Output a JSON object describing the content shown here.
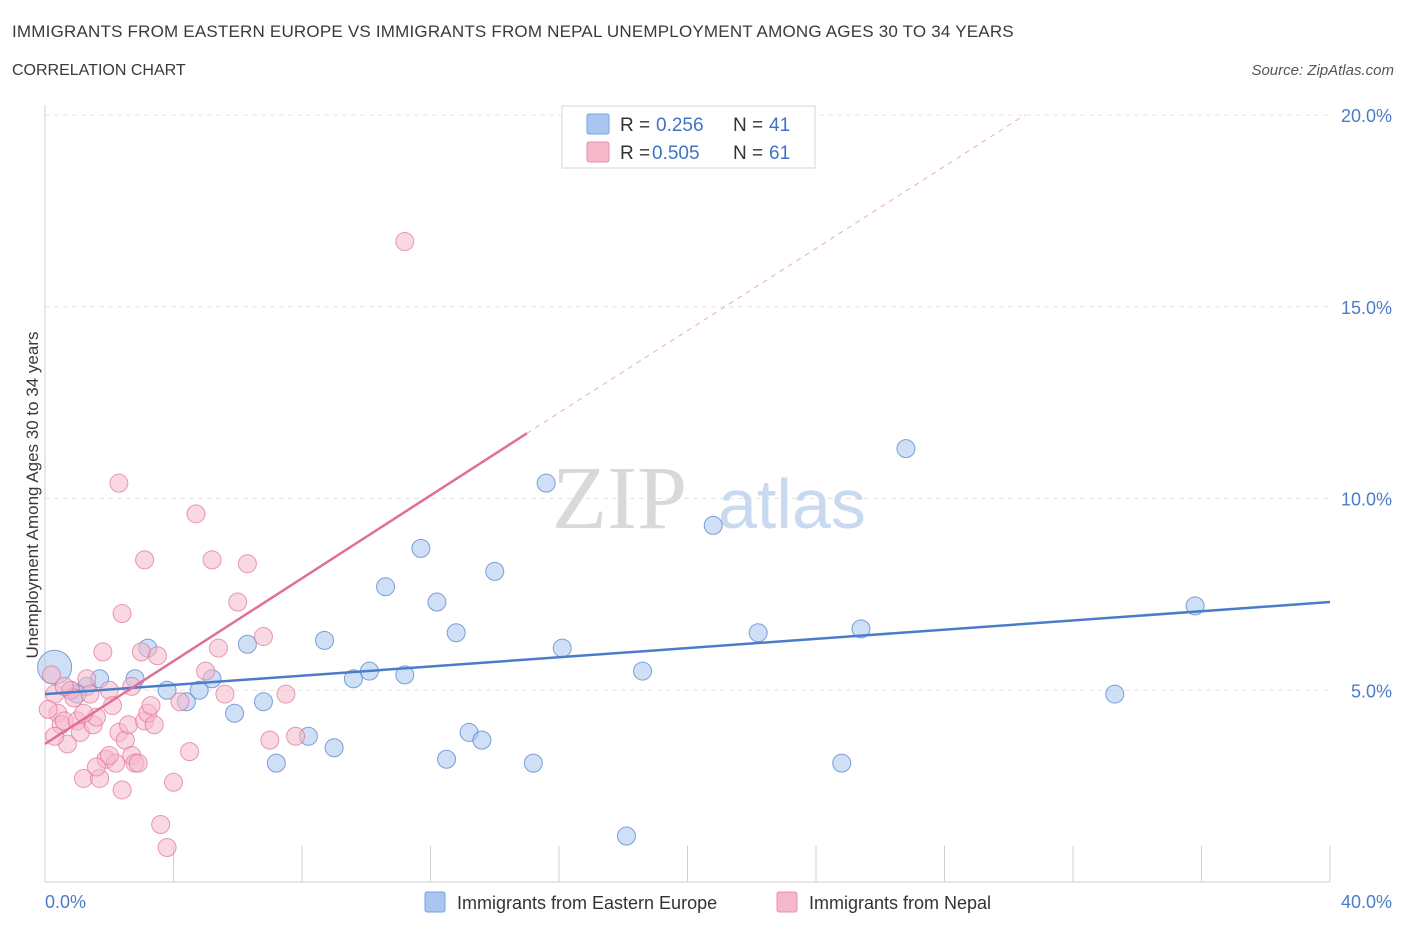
{
  "header": {
    "title": "IMMIGRANTS FROM EASTERN EUROPE VS IMMIGRANTS FROM NEPAL UNEMPLOYMENT AMONG AGES 30 TO 34 YEARS",
    "subtitle": "CORRELATION CHART",
    "source": "Source: ZipAtlas.com"
  },
  "watermark": {
    "zip": "ZIP",
    "atlas": "atlas"
  },
  "legend": {
    "rows": [
      {
        "r_label": "R =",
        "r_value": "0.256",
        "n_label": "N =",
        "n_value": "41",
        "color": "#a8c6ef"
      },
      {
        "r_label": "R =",
        "r_value": "0.505",
        "n_label": "N =",
        "n_value": "61",
        "color": "#f5b8cb"
      }
    ]
  },
  "chart_data": {
    "type": "scatter",
    "xlabel": "",
    "ylabel": "Unemployment Among Ages 30 to 34 years",
    "xlim": [
      0,
      40
    ],
    "ylim": [
      0,
      20
    ],
    "x_tick_labels": [
      "0.0%",
      "40.0%"
    ],
    "y_ticks": [
      5,
      10,
      15,
      20
    ],
    "y_tick_labels": [
      "5.0%",
      "10.0%",
      "15.0%",
      "20.0%"
    ],
    "grid": true,
    "legend_position": "top-center",
    "series": [
      {
        "name": "Immigrants from Eastern Europe",
        "color": "#4a7cc9",
        "fill": "#a8c6ef",
        "trend": {
          "x": [
            0,
            40
          ],
          "y": [
            4.9,
            7.3
          ]
        },
        "points": [
          [
            0.3,
            5.6
          ],
          [
            0.8,
            5.0
          ],
          [
            1.3,
            5.1
          ],
          [
            1.7,
            5.3
          ],
          [
            2.8,
            5.3
          ],
          [
            3.2,
            6.1
          ],
          [
            3.8,
            5.0
          ],
          [
            4.4,
            4.7
          ],
          [
            4.8,
            5.0
          ],
          [
            5.2,
            5.3
          ],
          [
            5.9,
            4.4
          ],
          [
            6.3,
            6.2
          ],
          [
            6.8,
            4.7
          ],
          [
            7.2,
            3.1
          ],
          [
            8.2,
            3.8
          ],
          [
            8.7,
            6.3
          ],
          [
            9.0,
            3.5
          ],
          [
            9.6,
            5.3
          ],
          [
            10.1,
            5.5
          ],
          [
            10.6,
            7.7
          ],
          [
            11.2,
            5.4
          ],
          [
            11.7,
            8.7
          ],
          [
            12.2,
            7.3
          ],
          [
            12.5,
            3.2
          ],
          [
            12.8,
            6.5
          ],
          [
            13.2,
            3.9
          ],
          [
            13.6,
            3.7
          ],
          [
            14.0,
            8.1
          ],
          [
            15.2,
            3.1
          ],
          [
            15.6,
            10.4
          ],
          [
            16.1,
            6.1
          ],
          [
            18.1,
            1.2
          ],
          [
            18.6,
            5.5
          ],
          [
            20.8,
            9.3
          ],
          [
            22.2,
            6.5
          ],
          [
            24.8,
            3.1
          ],
          [
            25.4,
            6.6
          ],
          [
            26.8,
            11.3
          ],
          [
            33.3,
            4.9
          ],
          [
            35.8,
            7.2
          ],
          [
            1.0,
            4.9
          ]
        ]
      },
      {
        "name": "Immigrants from Nepal",
        "color": "#e06f98",
        "fill": "#f5b8cb",
        "trend": {
          "x": [
            0,
            15
          ],
          "y": [
            3.6,
            11.7
          ]
        },
        "trend_dashed": {
          "x": [
            15,
            30.5
          ],
          "y": [
            11.7,
            20.0
          ]
        },
        "points": [
          [
            0.2,
            5.4
          ],
          [
            0.3,
            4.9
          ],
          [
            0.4,
            4.4
          ],
          [
            0.5,
            4.1
          ],
          [
            0.6,
            4.2
          ],
          [
            0.7,
            3.6
          ],
          [
            0.8,
            5.0
          ],
          [
            0.9,
            4.8
          ],
          [
            1.0,
            4.2
          ],
          [
            1.1,
            3.9
          ],
          [
            1.2,
            2.7
          ],
          [
            1.3,
            5.3
          ],
          [
            1.4,
            4.9
          ],
          [
            1.5,
            4.1
          ],
          [
            1.6,
            4.3
          ],
          [
            1.7,
            2.7
          ],
          [
            1.8,
            6.0
          ],
          [
            1.9,
            3.2
          ],
          [
            2.0,
            5.0
          ],
          [
            2.1,
            4.6
          ],
          [
            2.2,
            3.1
          ],
          [
            2.3,
            3.9
          ],
          [
            2.4,
            2.4
          ],
          [
            2.5,
            3.7
          ],
          [
            2.6,
            4.1
          ],
          [
            2.7,
            3.3
          ],
          [
            2.8,
            3.1
          ],
          [
            2.9,
            3.1
          ],
          [
            3.0,
            6.0
          ],
          [
            3.1,
            4.2
          ],
          [
            3.2,
            4.4
          ],
          [
            3.4,
            4.1
          ],
          [
            3.5,
            5.9
          ],
          [
            3.6,
            1.5
          ],
          [
            3.8,
            0.9
          ],
          [
            4.0,
            2.6
          ],
          [
            4.2,
            4.7
          ],
          [
            4.5,
            3.4
          ],
          [
            4.7,
            9.6
          ],
          [
            5.0,
            5.5
          ],
          [
            5.2,
            8.4
          ],
          [
            5.4,
            6.1
          ],
          [
            5.6,
            4.9
          ],
          [
            6.0,
            7.3
          ],
          [
            6.3,
            8.3
          ],
          [
            6.8,
            6.4
          ],
          [
            7.0,
            3.7
          ],
          [
            7.5,
            4.9
          ],
          [
            7.8,
            3.8
          ],
          [
            2.3,
            10.4
          ],
          [
            3.1,
            8.4
          ],
          [
            2.4,
            7.0
          ],
          [
            11.2,
            16.7
          ],
          [
            0.1,
            4.5
          ],
          [
            0.6,
            5.1
          ],
          [
            1.2,
            4.4
          ],
          [
            2.0,
            3.3
          ],
          [
            3.3,
            4.6
          ],
          [
            0.3,
            3.8
          ],
          [
            2.7,
            5.1
          ],
          [
            1.6,
            3.0
          ]
        ]
      }
    ]
  }
}
